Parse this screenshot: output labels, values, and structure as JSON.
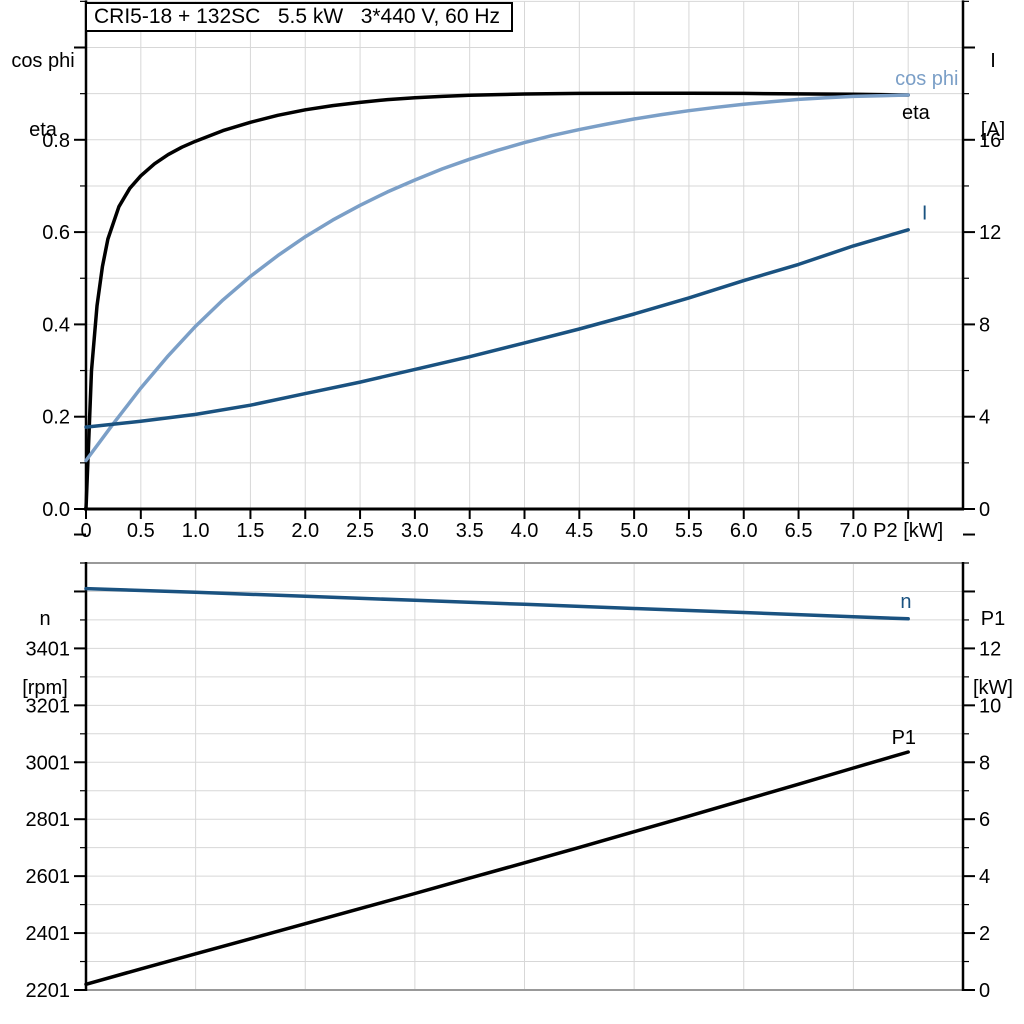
{
  "header": {
    "title": "CRI5-18 + 132SC   5.5 kW   3*440 V, 60 Hz"
  },
  "axis_titles": {
    "top_left_line1": "cos phi",
    "top_left_line2": "eta",
    "top_right_line1": "I",
    "top_right_line2": "[A]",
    "bottom_left_line1": "n",
    "bottom_left_line2": "[rpm]",
    "bottom_right_line1": "P1",
    "bottom_right_line2": "[kW]"
  },
  "colors": {
    "eta": "#000000",
    "cos_phi": "#7b9fc7",
    "current": "#1a5280",
    "speed": "#1a5280",
    "p1": "#000000",
    "grid": "#d7d7d7",
    "axis": "#000000",
    "panel_boundary": "#999999",
    "background": "#ffffff"
  },
  "chart_data": [
    {
      "type": "line",
      "title": "CRI5-18 + 132SC   5.5 kW   3*440 V, 60 Hz",
      "xlabel": "P2 [kW]",
      "legend_position": "inline-labels",
      "grid": true,
      "x_axis": {
        "min": 0,
        "max": 8,
        "grid_step": 0.5,
        "tick_step": 0.5,
        "show_ticks": true,
        "labeled_ticks": [
          [
            0,
            "0"
          ],
          [
            0.5,
            "0.5"
          ],
          [
            1,
            "1.0"
          ],
          [
            1.5,
            "1.5"
          ],
          [
            2,
            "2.0"
          ],
          [
            2.5,
            "2.5"
          ],
          [
            3,
            "3.0"
          ],
          [
            3.5,
            "3.5"
          ],
          [
            4,
            "4.0"
          ],
          [
            4.5,
            "4.5"
          ],
          [
            5,
            "5.0"
          ],
          [
            5.5,
            "5.5"
          ],
          [
            6,
            "6.0"
          ],
          [
            6.5,
            "6.5"
          ],
          [
            7,
            "7.0"
          ]
        ],
        "unit_label": "P2 [kW]",
        "unit_label_at": 7.5
      },
      "y_left": {
        "label": "cos phi / eta",
        "min": 0,
        "max": 1.1,
        "grid_step": 0.1,
        "major_tick_step": 0.2,
        "labeled_ticks": [
          [
            0,
            "0.0"
          ],
          [
            0.2,
            "0.2"
          ],
          [
            0.4,
            "0.4"
          ],
          [
            0.6,
            "0.6"
          ],
          [
            0.8,
            "0.8"
          ]
        ]
      },
      "y_right": {
        "label": "I [A]",
        "min": 0,
        "max": 22,
        "grid_step": 2,
        "major_tick_step": 4,
        "labeled_ticks": [
          [
            0,
            "0"
          ],
          [
            4,
            "4"
          ],
          [
            8,
            "8"
          ],
          [
            12,
            "12"
          ],
          [
            16,
            "16"
          ]
        ]
      },
      "series": [
        {
          "name": "eta",
          "axis": "left",
          "color": "#000000",
          "points": [
            [
              0,
              0
            ],
            [
              0.05,
              0.3
            ],
            [
              0.1,
              0.44
            ],
            [
              0.15,
              0.525
            ],
            [
              0.2,
              0.585
            ],
            [
              0.3,
              0.655
            ],
            [
              0.4,
              0.695
            ],
            [
              0.5,
              0.722
            ],
            [
              0.625,
              0.748
            ],
            [
              0.75,
              0.768
            ],
            [
              0.875,
              0.784
            ],
            [
              1,
              0.797
            ],
            [
              1.25,
              0.82
            ],
            [
              1.5,
              0.838
            ],
            [
              1.75,
              0.853
            ],
            [
              2,
              0.865
            ],
            [
              2.25,
              0.874
            ],
            [
              2.5,
              0.881
            ],
            [
              2.75,
              0.887
            ],
            [
              3,
              0.891
            ],
            [
              3.25,
              0.894
            ],
            [
              3.5,
              0.8965
            ],
            [
              3.75,
              0.898
            ],
            [
              4,
              0.8993
            ],
            [
              4.5,
              0.9005
            ],
            [
              5,
              0.901
            ],
            [
              5.5,
              0.901
            ],
            [
              6,
              0.9005
            ],
            [
              6.5,
              0.8995
            ],
            [
              7,
              0.8985
            ],
            [
              7.5,
              0.897
            ]
          ]
        },
        {
          "name": "cos phi",
          "axis": "left",
          "color": "#7b9fc7",
          "points": [
            [
              0,
              0.105
            ],
            [
              0.25,
              0.185
            ],
            [
              0.5,
              0.262
            ],
            [
              0.75,
              0.332
            ],
            [
              1,
              0.396
            ],
            [
              1.25,
              0.453
            ],
            [
              1.5,
              0.504
            ],
            [
              1.75,
              0.549
            ],
            [
              2,
              0.59
            ],
            [
              2.25,
              0.626
            ],
            [
              2.5,
              0.658
            ],
            [
              2.75,
              0.687
            ],
            [
              3,
              0.713
            ],
            [
              3.25,
              0.737
            ],
            [
              3.5,
              0.758
            ],
            [
              3.75,
              0.777
            ],
            [
              4,
              0.794
            ],
            [
              4.25,
              0.809
            ],
            [
              4.5,
              0.822
            ],
            [
              4.75,
              0.834
            ],
            [
              5,
              0.845
            ],
            [
              5.25,
              0.8545
            ],
            [
              5.5,
              0.863
            ],
            [
              5.75,
              0.8705
            ],
            [
              6,
              0.877
            ],
            [
              6.25,
              0.8825
            ],
            [
              6.5,
              0.8875
            ],
            [
              6.75,
              0.891
            ],
            [
              7,
              0.894
            ],
            [
              7.25,
              0.8955
            ],
            [
              7.5,
              0.897
            ]
          ]
        },
        {
          "name": "I",
          "axis": "right",
          "color": "#1a5280",
          "points": [
            [
              0,
              3.55
            ],
            [
              0.5,
              3.8
            ],
            [
              1,
              4.1
            ],
            [
              1.5,
              4.5
            ],
            [
              2,
              5.0
            ],
            [
              2.5,
              5.5
            ],
            [
              3,
              6.05
            ],
            [
              3.5,
              6.6
            ],
            [
              4,
              7.2
            ],
            [
              4.5,
              7.8
            ],
            [
              5,
              8.45
            ],
            [
              5.5,
              9.15
            ],
            [
              6,
              9.9
            ],
            [
              6.5,
              10.6
            ],
            [
              7,
              11.4
            ],
            [
              7.5,
              12.1
            ]
          ]
        }
      ],
      "annotations": [
        {
          "text": "cos phi",
          "x": 7.67,
          "y": 0.932,
          "axis": "left",
          "color": "#7b9fc7"
        },
        {
          "text": "eta",
          "x": 7.57,
          "y": 0.858,
          "axis": "left",
          "color": "#000000"
        },
        {
          "text": "I",
          "x": 7.65,
          "y": 12.8,
          "axis": "right",
          "color": "#1a5280"
        }
      ]
    },
    {
      "type": "line",
      "title": "",
      "xlabel": "P2 [kW] (shared with top panel, unlabeled)",
      "grid": true,
      "x_axis": {
        "min": 0,
        "max": 8,
        "grid_step": 1,
        "tick_step": 1,
        "show_ticks": false,
        "labeled_ticks": [],
        "unit_label": "",
        "unit_label_at": null
      },
      "y_left": {
        "label": "n [rpm]",
        "min": 2201,
        "max": 3701,
        "grid_step": 100,
        "major_tick_step": 200,
        "labeled_ticks": [
          [
            2201,
            "2201"
          ],
          [
            2401,
            "2401"
          ],
          [
            2601,
            "2601"
          ],
          [
            2801,
            "2801"
          ],
          [
            3001,
            "3001"
          ],
          [
            3201,
            "3201"
          ],
          [
            3401,
            "3401"
          ]
        ]
      },
      "y_right": {
        "label": "P1 [kW]",
        "min": 0,
        "max": 15,
        "grid_step": 1,
        "major_tick_step": 2,
        "labeled_ticks": [
          [
            0,
            "0"
          ],
          [
            2,
            "2"
          ],
          [
            4,
            "4"
          ],
          [
            6,
            "6"
          ],
          [
            8,
            "8"
          ],
          [
            10,
            "10"
          ],
          [
            12,
            "12"
          ]
        ]
      },
      "series": [
        {
          "name": "n",
          "axis": "left",
          "color": "#1a5280",
          "points": [
            [
              0,
              3611
            ],
            [
              1,
              3598
            ],
            [
              2,
              3584
            ],
            [
              3,
              3570
            ],
            [
              4,
              3556
            ],
            [
              5,
              3541
            ],
            [
              6,
              3527
            ],
            [
              7,
              3512
            ],
            [
              7.5,
              3505
            ]
          ]
        },
        {
          "name": "P1",
          "axis": "right",
          "color": "#000000",
          "points": [
            [
              0,
              0.2
            ],
            [
              0.5,
              0.74
            ],
            [
              1,
              1.27
            ],
            [
              1.5,
              1.8
            ],
            [
              2,
              2.33
            ],
            [
              2.5,
              2.86
            ],
            [
              3,
              3.39
            ],
            [
              3.5,
              3.93
            ],
            [
              4,
              4.47
            ],
            [
              4.5,
              5.01
            ],
            [
              5,
              5.56
            ],
            [
              5.5,
              6.11
            ],
            [
              6,
              6.67
            ],
            [
              6.5,
              7.23
            ],
            [
              7,
              7.8
            ],
            [
              7.5,
              8.36
            ]
          ]
        }
      ],
      "annotations": [
        {
          "text": "n",
          "x": 7.48,
          "y": 3564,
          "axis": "left",
          "color": "#1a5280"
        },
        {
          "text": "P1",
          "x": 7.46,
          "y": 8.85,
          "axis": "right",
          "color": "#000000"
        }
      ]
    }
  ]
}
